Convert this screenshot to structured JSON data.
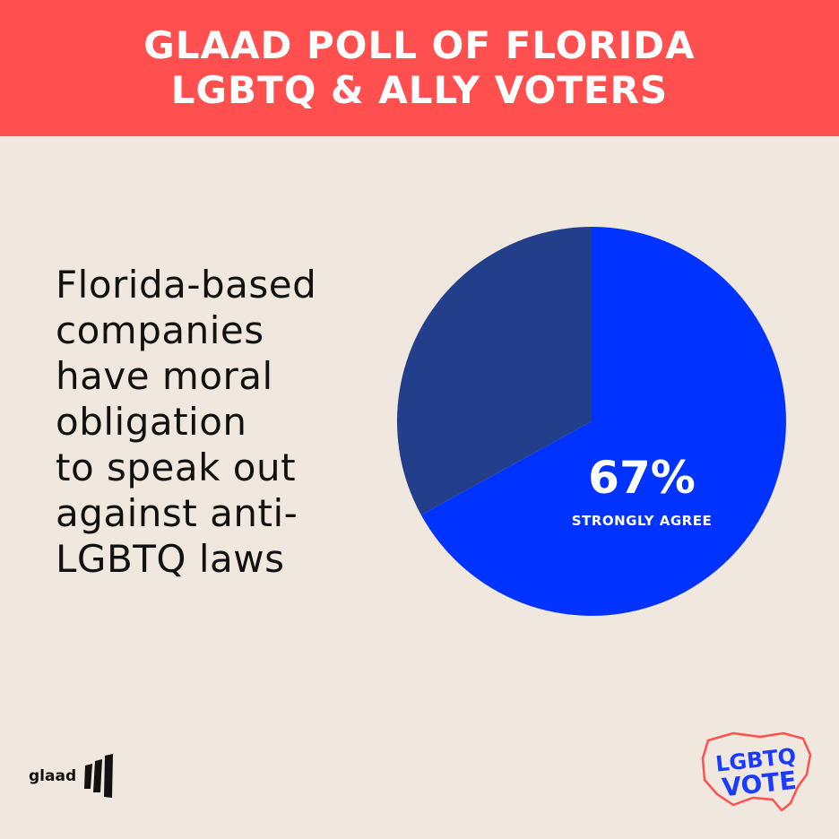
{
  "header": {
    "line1": "GLAAD POLL OF FLORIDA",
    "line2": "LGBTQ & ALLY VOTERS",
    "bg_color": "#ff4f4f"
  },
  "statement_lines": [
    "Florida-based",
    "companies",
    "have moral",
    "obligation",
    "to speak out",
    "against anti-",
    "LGBTQ laws"
  ],
  "chart_data": {
    "type": "pie",
    "slices": [
      {
        "label": "STRONGLY AGREE",
        "value": 67,
        "value_label": "67%",
        "color": "#0033ff"
      },
      {
        "value": 33,
        "color": "#233e8b"
      }
    ]
  },
  "logos": {
    "glaad": "glaad",
    "vote_line1": "LGBTQ",
    "vote_line2": "VOTE",
    "vote_color": "#1a3cff",
    "map_outline_color": "#ff4f4f"
  },
  "icons": {
    "glaad_mark": "glaad-stripes-icon",
    "us_map": "us-map-outline-icon"
  }
}
